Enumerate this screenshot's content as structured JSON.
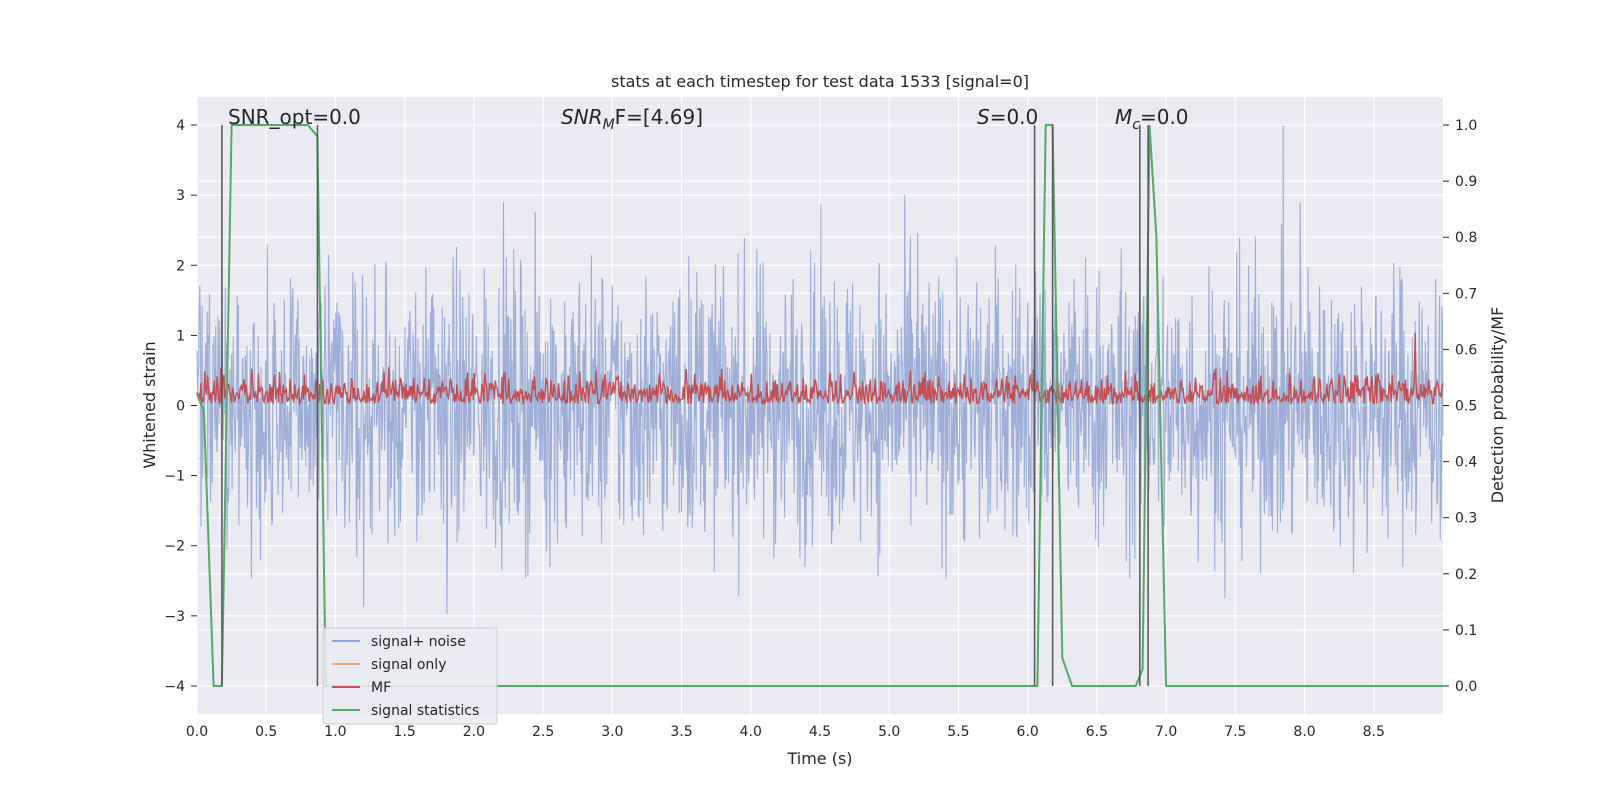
{
  "chart_data": {
    "type": "line",
    "title": "stats at each timestep for test data 1533 [signal=0]",
    "xlabel": "Time (s)",
    "ylabel": "Whitened strain",
    "y2label": "Detection probability/MF",
    "xlim": [
      0.0,
      9.0
    ],
    "ylim": [
      -4.4,
      4.4
    ],
    "y2lim": [
      -0.05,
      1.05
    ],
    "xticks": [
      "0.0",
      "0.5",
      "1.0",
      "1.5",
      "2.0",
      "2.5",
      "3.0",
      "3.5",
      "4.0",
      "4.5",
      "5.0",
      "5.5",
      "6.0",
      "6.5",
      "7.0",
      "7.5",
      "8.0",
      "8.5"
    ],
    "yticks": [
      "4",
      "3",
      "2",
      "1",
      "0",
      "−1",
      "−2",
      "−3",
      "−4"
    ],
    "y2ticks": [
      "1.0",
      "0.9",
      "0.8",
      "0.7",
      "0.6",
      "0.5",
      "0.4",
      "0.3",
      "0.2",
      "0.1",
      "0.0"
    ],
    "grid": true,
    "legend_position": "lower-left",
    "annotations": {
      "snr_opt": "SNR_opt=0.0",
      "snr_mf": "SNR_MF=[4.69]",
      "snr_mf_parts": {
        "base": "SNR",
        "sub": "M",
        "rest": "F=[4.69]"
      },
      "s": "S=0.0",
      "s_parts": {
        "base": "S",
        "rest": "=0.0"
      },
      "mc": "M_c=0.0",
      "mc_parts": {
        "base": "M",
        "sub": "c",
        "rest": "=0.0"
      }
    },
    "series": [
      {
        "name": "signal+ noise",
        "axis": "left",
        "color": "#8fa5d1",
        "description": "whitened strain noise, amplitude roughly within ±3.5, occasional spikes to ±4"
      },
      {
        "name": "signal only",
        "axis": "left",
        "color": "#e9a47c",
        "values": []
      },
      {
        "name": "MF",
        "axis": "right",
        "color": "#c44e52",
        "description": "matched filter output fluctuating between about 0.5 and 0.62, one spike to 0.63 near t=8.8"
      },
      {
        "name": "signal statistics",
        "axis": "right",
        "color": "#55a868",
        "x": [
          0.0,
          0.05,
          0.12,
          0.18,
          0.25,
          0.3,
          0.35,
          0.4,
          0.45,
          0.5,
          0.55,
          0.6,
          0.65,
          0.7,
          0.75,
          0.8,
          0.87,
          0.93,
          1.0,
          1.1,
          2.0,
          3.0,
          4.0,
          5.0,
          6.0,
          6.07,
          6.13,
          6.18,
          6.25,
          6.32,
          6.4,
          6.5,
          6.6,
          6.7,
          6.78,
          6.83,
          6.88,
          6.93,
          7.0,
          7.1,
          8.0,
          9.0
        ],
        "values": [
          0.52,
          0.49,
          0.0,
          0.0,
          1.0,
          1.0,
          1.0,
          1.0,
          1.0,
          1.0,
          1.0,
          1.0,
          1.0,
          1.0,
          1.0,
          1.0,
          0.98,
          0.0,
          0.0,
          0.0,
          0.0,
          0.0,
          0.0,
          0.0,
          0.0,
          0.0,
          1.0,
          1.0,
          0.05,
          0.0,
          0.0,
          0.0,
          0.0,
          0.0,
          0.0,
          0.03,
          1.0,
          0.8,
          0.0,
          0.0,
          0.0,
          0.0
        ]
      }
    ],
    "vertical_markers_x": [
      0.18,
      0.87,
      6.05,
      6.18,
      6.81,
      6.87
    ]
  },
  "colors": {
    "background": "#eaeaf2",
    "grid": "#ffffff",
    "noise": "#8fa5d1",
    "signal_only": "#e9a47c",
    "mf": "#c44e52",
    "stats": "#55a868",
    "marker": "#555555"
  }
}
